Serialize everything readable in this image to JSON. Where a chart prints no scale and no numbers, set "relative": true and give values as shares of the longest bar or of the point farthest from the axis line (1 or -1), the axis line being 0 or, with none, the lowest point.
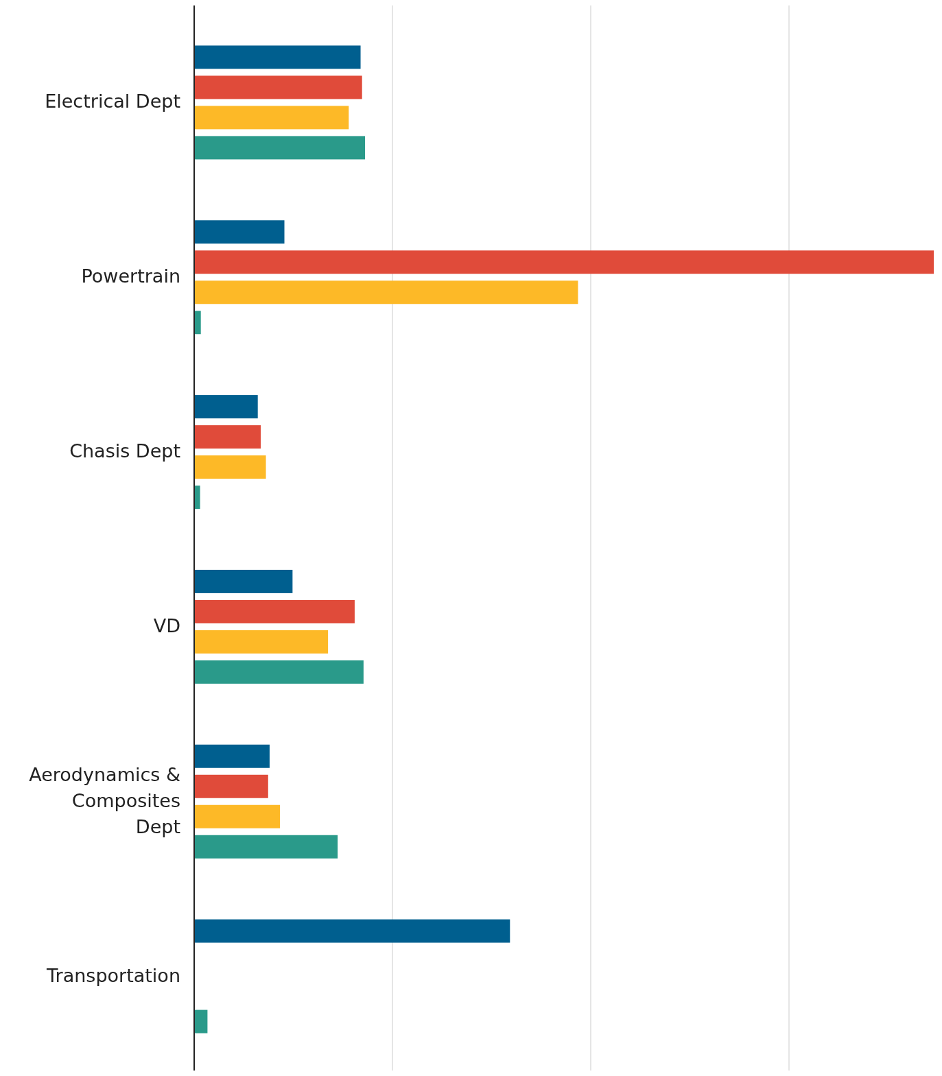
{
  "chart_data": {
    "type": "bar",
    "orientation": "horizontal",
    "relative": true,
    "grid": "x",
    "categories": [
      "Electrical Dept",
      "Powertrain",
      "Chasis Dept",
      "VD",
      "Aerodynamics & Composites Dept",
      "Transportation"
    ],
    "series": [
      {
        "color": "#005f8f",
        "values": [
          0.225,
          0.122,
          0.086,
          0.133,
          0.102,
          0.427
        ]
      },
      {
        "color": "#e04b3a",
        "values": [
          0.227,
          1,
          0.09,
          0.217,
          0.1,
          null
        ]
      },
      {
        "color": "#fdb927",
        "values": [
          0.209,
          0.519,
          0.097,
          0.181,
          0.116,
          null
        ]
      },
      {
        "color": "#2a9a8a",
        "values": [
          0.231,
          0.009,
          0.008,
          0.229,
          0.194,
          0.018
        ]
      }
    ]
  }
}
